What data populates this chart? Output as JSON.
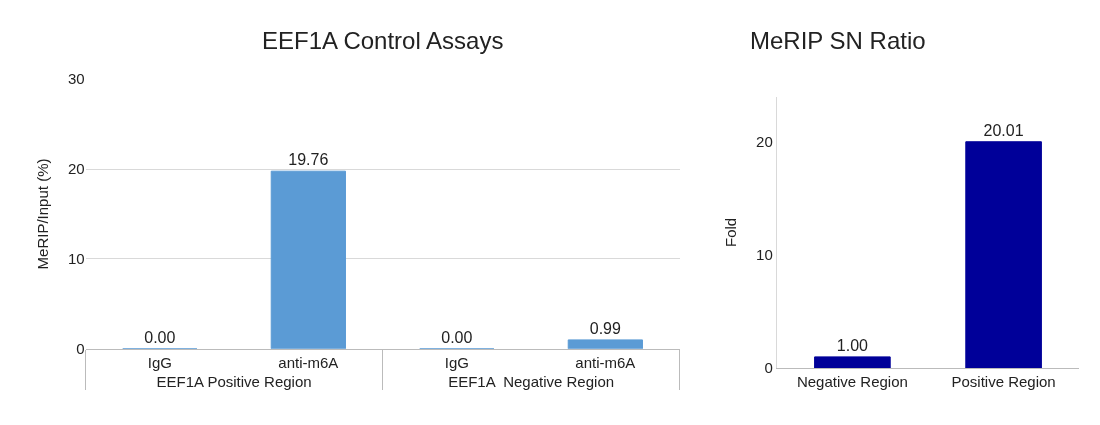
{
  "chart_data": [
    {
      "type": "bar",
      "title": "EEF1A Control Assays",
      "ylabel": "MeRIP/Input (%)",
      "categories": [
        "IgG",
        "anti-m6A",
        "IgG",
        "anti-m6A"
      ],
      "annotations": [
        "EEF1A Positive Region",
        "EEF1A  Negative Region"
      ],
      "values": [
        0.0,
        19.76,
        0.0,
        0.99
      ],
      "value_labels": [
        "0.00",
        "19.76",
        "0.00",
        "0.99"
      ],
      "color": "#5b9bd5",
      "ylim": [
        0,
        30
      ],
      "yticks": [
        0,
        10,
        20,
        30
      ],
      "grid": "y"
    },
    {
      "type": "bar",
      "title": "MeRIP SN Ratio",
      "ylabel": "Fold",
      "categories": [
        "Negative Region",
        "Positive Region"
      ],
      "values": [
        1.0,
        20.01
      ],
      "value_labels": [
        "1.00",
        "20.01"
      ],
      "color": "#000099",
      "ylim": [
        0,
        24
      ],
      "yticks": [
        0,
        10,
        20
      ]
    }
  ]
}
